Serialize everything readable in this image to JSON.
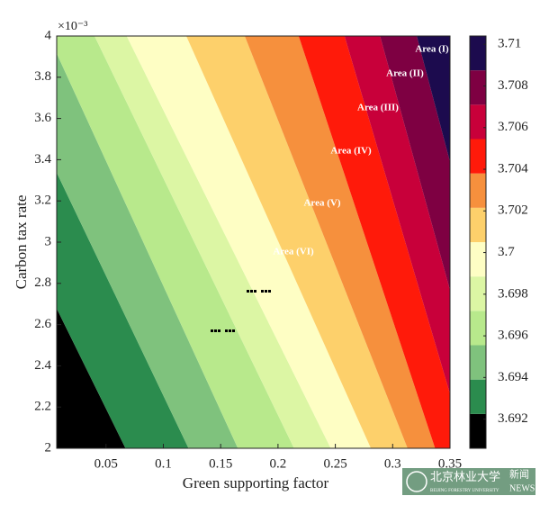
{
  "chart_data": {
    "type": "contour",
    "xlabel": "Green supporting factor",
    "ylabel": "Carbon tax rate",
    "y_exponent_label": "×10⁻³",
    "xlim": [
      0.007,
      0.35
    ],
    "xticks": [
      0.05,
      0.1,
      0.15,
      0.2,
      0.25,
      0.3,
      0.35
    ],
    "ylim": [
      2,
      4
    ],
    "yticks": [
      2,
      2.2,
      2.4,
      2.6,
      2.8,
      3,
      3.2,
      3.4,
      3.6,
      3.8,
      4
    ],
    "levels": [
      3.69225,
      3.6939,
      3.69555,
      3.6972,
      3.69885,
      3.7005,
      3.70215,
      3.7038,
      3.70545,
      3.7071,
      3.70875
    ],
    "boundary_x_at_ylim": [
      [
        0.067,
        -0.11
      ],
      [
        0.122,
        -0.05
      ],
      [
        0.165,
        0.0
      ],
      [
        0.214,
        0.04
      ],
      [
        0.246,
        0.068
      ],
      [
        0.281,
        0.12
      ],
      [
        0.313,
        0.171
      ],
      [
        0.337,
        0.218
      ],
      [
        0.364,
        0.258
      ],
      [
        0.388,
        0.289
      ],
      [
        0.416,
        0.321
      ]
    ],
    "colors": [
      "#000000",
      "#2b8c4e",
      "#7fc27d",
      "#b8e98c",
      "#dcf6a4",
      "#fefec4",
      "#fdd06b",
      "#f6903d",
      "#ff1a0a",
      "#c8003a",
      "#7e0042",
      "#1c0b4e"
    ],
    "clim": [
      3.6906,
      3.7104
    ],
    "cticks": [
      3.692,
      3.694,
      3.696,
      3.698,
      {
        "value": 3.7,
        "label": "3.7"
      },
      3.702,
      3.704,
      3.706,
      3.708,
      3.71
    ],
    "annotations": [
      "Area (I)",
      "Area (II)",
      "Area (III)",
      "Area (IV)",
      "Area (V)",
      "Area (VI)"
    ]
  },
  "watermark": {
    "name": "北京林业大学",
    "sub": "BEIJING FORESTRY UNIVERSITY",
    "tag1": "新闻",
    "tag2": "NEWS"
  }
}
